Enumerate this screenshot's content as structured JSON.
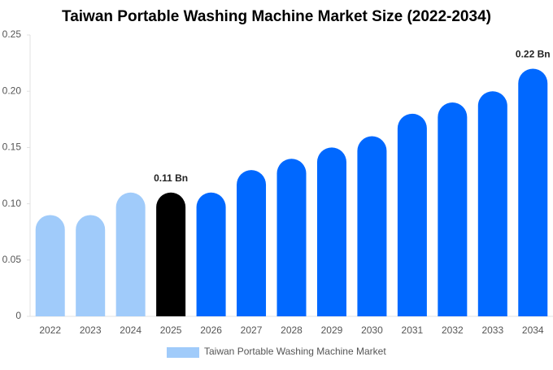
{
  "chart_data": {
    "type": "bar",
    "title": "Taiwan Portable Washing Machine Market Size (2022-2034)",
    "categories": [
      "2022",
      "2023",
      "2024",
      "2025",
      "2026",
      "2027",
      "2028",
      "2029",
      "2030",
      "2031",
      "2032",
      "2033",
      "2034"
    ],
    "series": [
      {
        "name": "Taiwan Portable Washing Machine Market",
        "color": "#a0cbfa",
        "colors": [
          "#a0cbfa",
          "#a0cbfa",
          "#a0cbfa",
          "#000000",
          "#0068ff",
          "#0068ff",
          "#0068ff",
          "#0068ff",
          "#0068ff",
          "#0068ff",
          "#0068ff",
          "#0068ff",
          "#0068ff"
        ],
        "values": [
          0.09,
          0.09,
          0.11,
          0.11,
          0.11,
          0.13,
          0.14,
          0.15,
          0.16,
          0.18,
          0.19,
          0.2,
          0.22
        ],
        "value_labels": [
          null,
          null,
          null,
          "0.11 Bn",
          null,
          null,
          null,
          null,
          null,
          null,
          null,
          null,
          "0.22 Bn"
        ]
      }
    ],
    "ylim": [
      0,
      0.25
    ],
    "yticks": [
      0,
      0.05,
      {
        "value": 0.1,
        "label": "0.10"
      },
      0.15,
      {
        "value": 0.2,
        "label": "0.20"
      },
      0.25
    ]
  }
}
